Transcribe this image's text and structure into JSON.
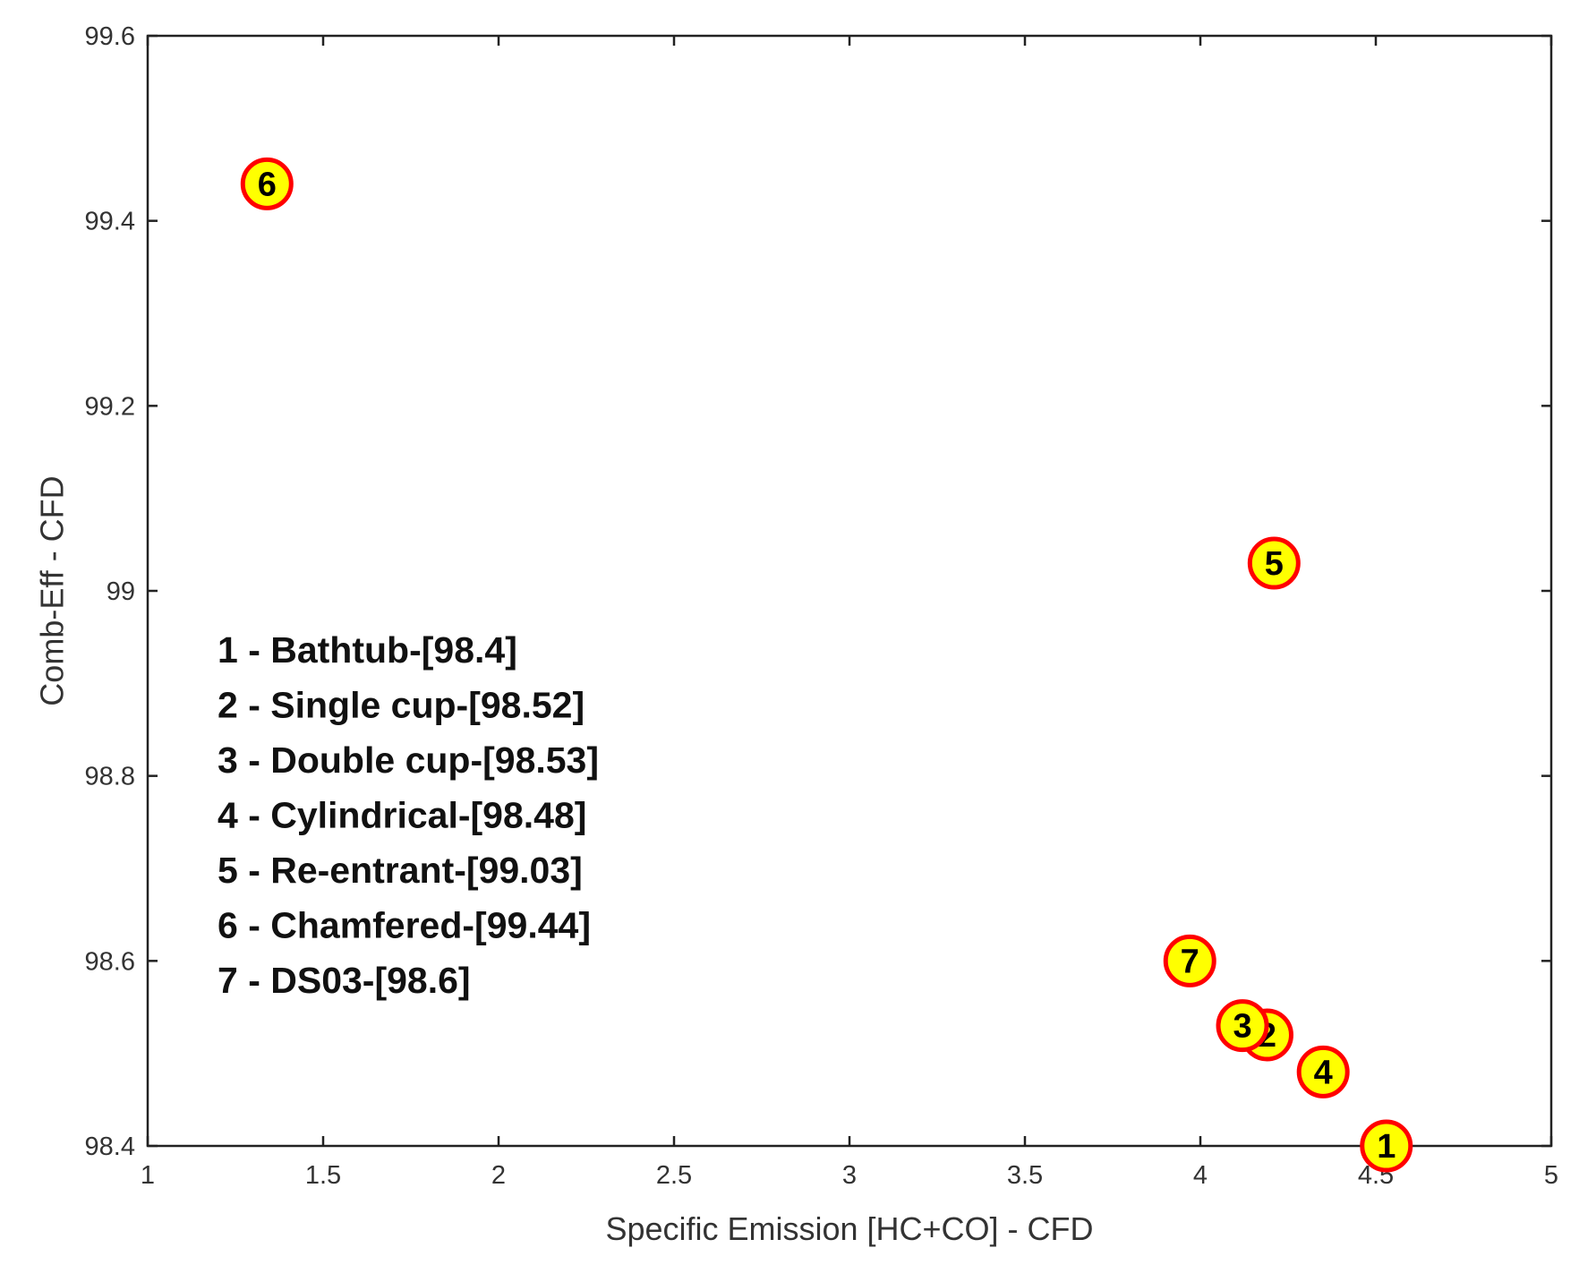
{
  "chart_data": {
    "type": "scatter",
    "title": "",
    "xlabel": "Specific Emission [HC+CO] - CFD",
    "ylabel": "Comb-Eff - CFD",
    "xlim": [
      1,
      5
    ],
    "ylim": [
      98.4,
      99.6
    ],
    "x_ticks": [
      1,
      1.5,
      2,
      2.5,
      3,
      3.5,
      4,
      4.5,
      5
    ],
    "x_tick_labels": [
      "1",
      "1.5",
      "2",
      "2.5",
      "3",
      "3.5",
      "4",
      "4.5",
      "5"
    ],
    "y_ticks": [
      98.4,
      98.6,
      98.8,
      99,
      99.2,
      99.4,
      99.6
    ],
    "y_tick_labels": [
      "98.4",
      "98.6",
      "98.8",
      "99",
      "99.2",
      "99.4",
      "99.6"
    ],
    "grid": false,
    "legend_position": "middle-left",
    "legend_entries": [
      "1 - Bathtub-[98.4]",
      "2 - Single cup-[98.52]",
      "3 - Double cup-[98.53]",
      "4 - Cylindrical-[98.48]",
      "5 - Re-entrant-[99.03]",
      "6 - Chamfered-[99.44]",
      "7 - DS03-[98.6]"
    ],
    "points": [
      {
        "label": "1",
        "x": 4.53,
        "y": 98.4
      },
      {
        "label": "2",
        "x": 4.19,
        "y": 98.52
      },
      {
        "label": "3",
        "x": 4.12,
        "y": 98.53
      },
      {
        "label": "4",
        "x": 4.35,
        "y": 98.48
      },
      {
        "label": "5",
        "x": 4.21,
        "y": 99.03
      },
      {
        "label": "6",
        "x": 1.34,
        "y": 99.44
      },
      {
        "label": "7",
        "x": 3.97,
        "y": 98.6
      }
    ],
    "marker_style": {
      "fill": "#ffff00",
      "stroke": "#ff0000",
      "shape": "circle"
    }
  }
}
